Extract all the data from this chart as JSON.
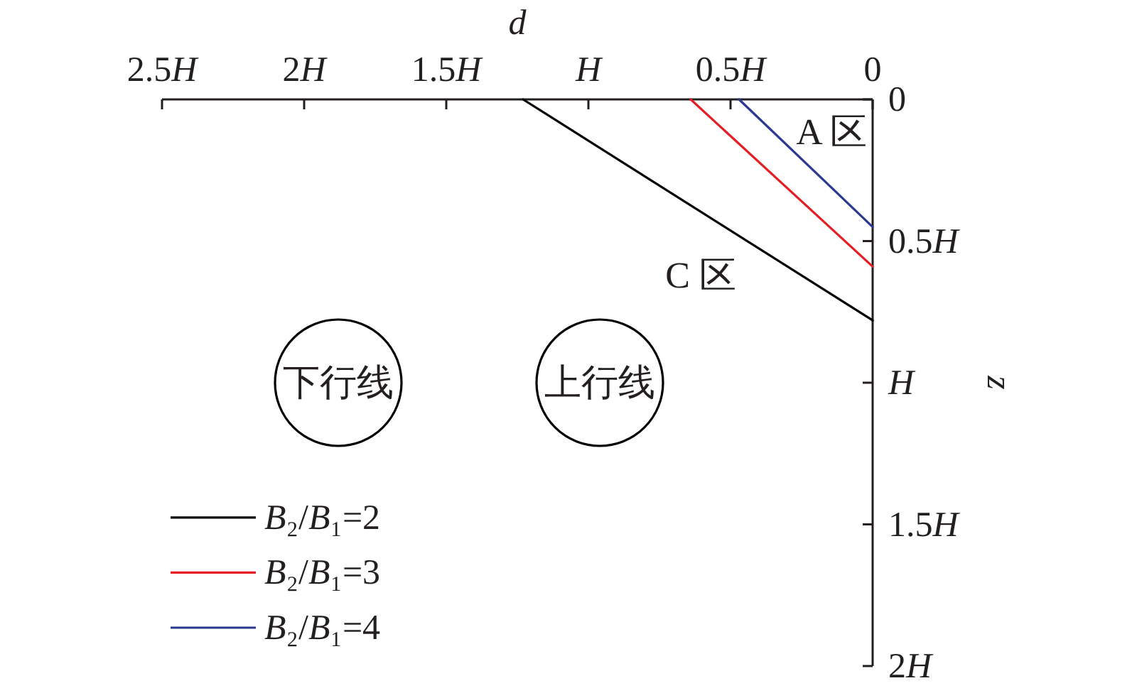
{
  "chart_data": {
    "type": "line",
    "xlabel": "d",
    "ylabel": "z",
    "xlim": [
      2.5,
      0
    ],
    "ylim": [
      2,
      0
    ],
    "xticks": [
      {
        "value": 2.5,
        "label": "2.5H"
      },
      {
        "value": 2,
        "label": "2H"
      },
      {
        "value": 1.5,
        "label": "1.5H"
      },
      {
        "value": 1,
        "label": "H"
      },
      {
        "value": 0.5,
        "label": "0.5H"
      },
      0
    ],
    "yticks": [
      0,
      {
        "value": 0.5,
        "label": "0.5H"
      },
      {
        "value": 1,
        "label": "H"
      },
      {
        "value": 1.5,
        "label": "1.5H"
      },
      {
        "value": 2,
        "label": "2H"
      }
    ],
    "series": [
      {
        "name": "B₂/B₁=2",
        "color": "#000000",
        "x": [
          1.23,
          0
        ],
        "values": [
          0,
          0.78
        ]
      },
      {
        "name": "B₂/B₁=3",
        "color": "#e31e24",
        "x": [
          0.64,
          0
        ],
        "values": [
          0,
          0.59
        ]
      },
      {
        "name": "B₂/B₁=4",
        "color": "#2b3990",
        "x": [
          0.47,
          0
        ],
        "values": [
          0,
          0.45
        ]
      },
      {
        "type": "scatter",
        "color": "#000000",
        "marker": "circle",
        "x": [
          1.88,
          0.96
        ],
        "values": [
          1.0,
          1.0
        ]
      }
    ],
    "annotations": [
      "A 区",
      "C 区",
      {
        "text": "下行线",
        "x": 1.88,
        "y": 1.0
      },
      {
        "text": "上行线",
        "x": 0.96,
        "y": 1.0
      }
    ],
    "line_style": "solid",
    "legend": "bottom left"
  }
}
